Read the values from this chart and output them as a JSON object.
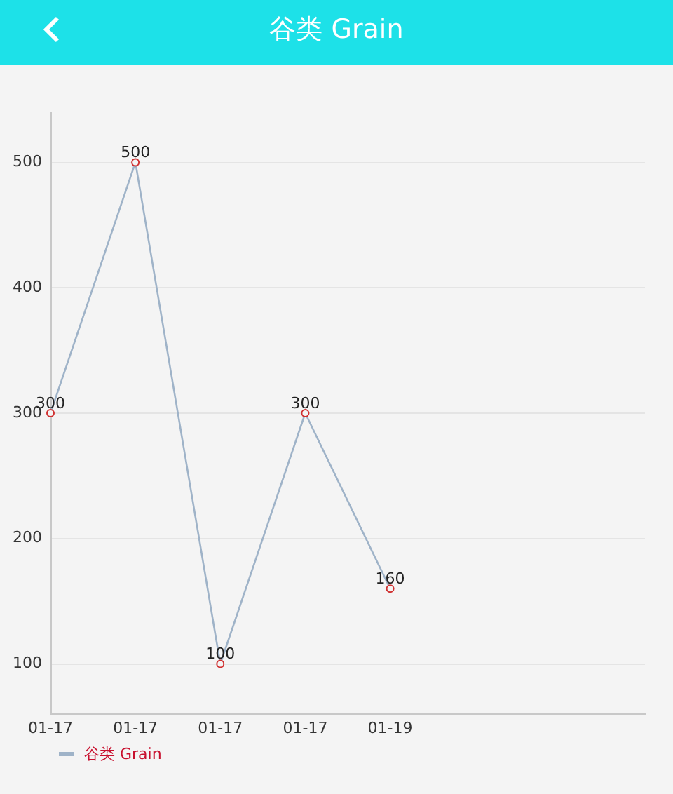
{
  "chart_data": {
    "type": "line",
    "title": "谷类 Grain",
    "categories": [
      "01-17",
      "01-17",
      "01-17",
      "01-17",
      "01-19",
      null,
      null,
      null
    ],
    "series": [
      {
        "name": "谷类 Grain",
        "color": "#9fb3c8",
        "values": [
          300,
          500,
          100,
          300,
          160,
          null,
          null,
          null
        ]
      }
    ],
    "ylim": [
      60,
      540
    ],
    "yticks": [
      100,
      200,
      300,
      400,
      500
    ],
    "grid": "y",
    "legend": "bottom left",
    "marker": "circle",
    "data_labels": true
  }
}
